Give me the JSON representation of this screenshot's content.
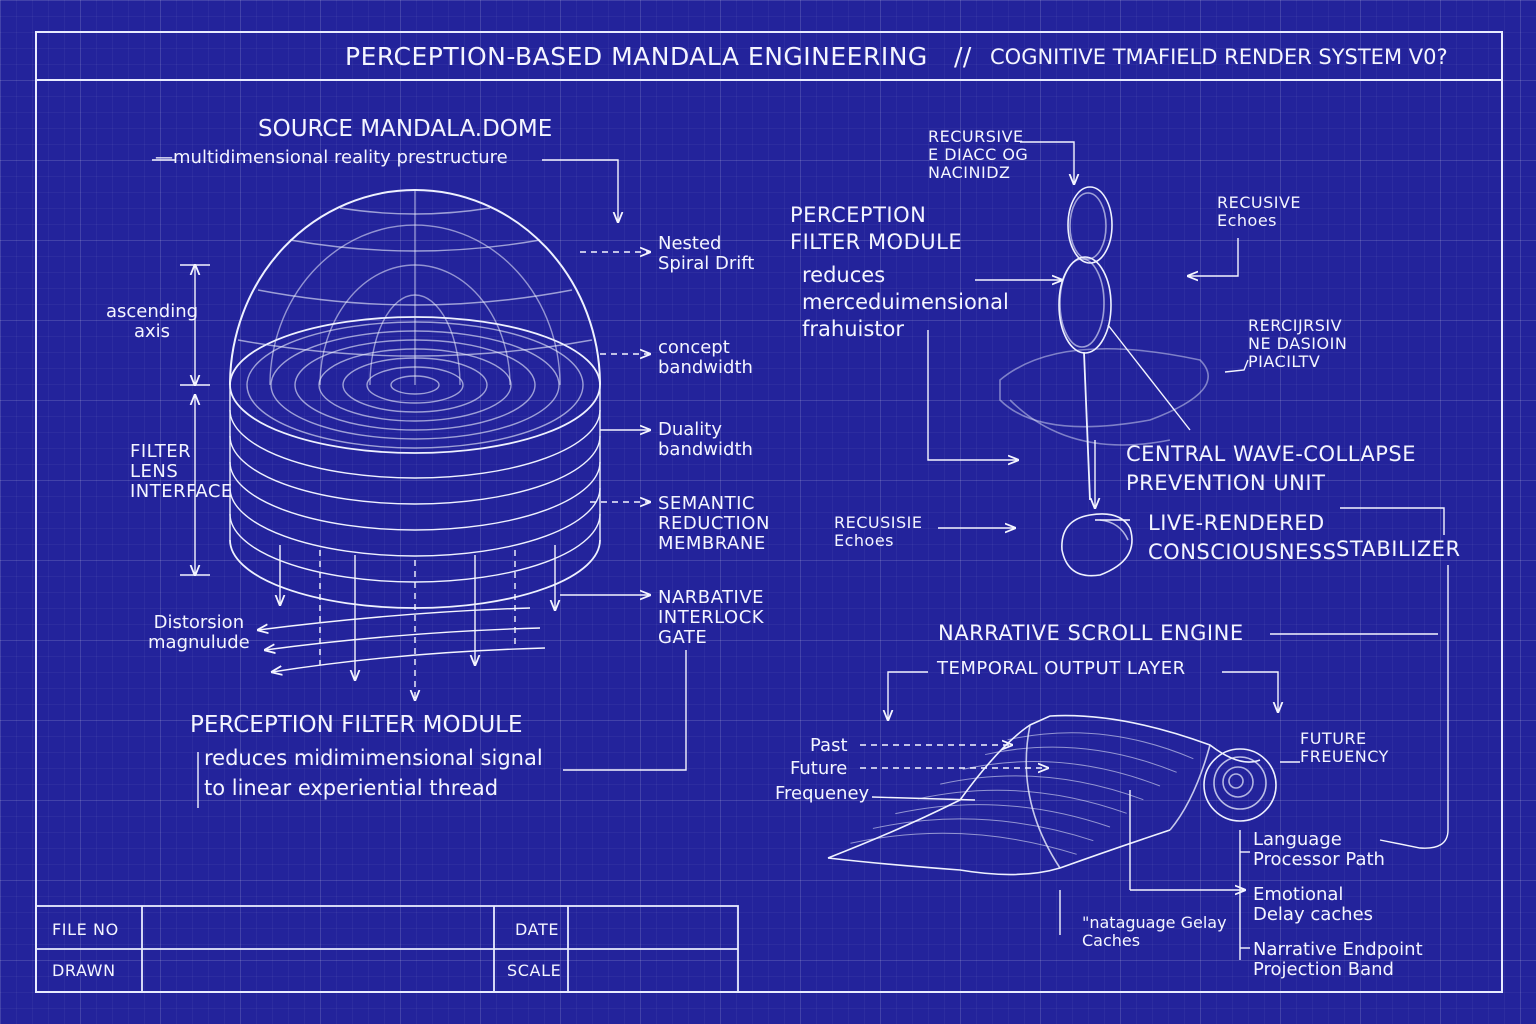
{
  "header": {
    "title": "PERCEPTION-BASED MANDALA ENGINEERING",
    "separator": "//",
    "subtitle": "COGNITIVE TMAFIELD RENDER SYSTEM V0?"
  },
  "dome": {
    "title": "SOURCE MANDALA.DOME",
    "subtitle": "—multidimensional reality prestructure",
    "ascending_axis": "ascending\naxis",
    "filter_lens": "FILTER\nLENS\nINTERFACE",
    "distortion": "Distorsion\nmagnulude",
    "nested": "Nested\nSpiral Drift",
    "concept": "concept\nbandwidth",
    "duality": "Duality\nbandwidth",
    "semantic": "SEMANTIC\nREDUCTION\nMEMBRANE",
    "narrative_gate": "NARBATIVE\nINTERLOCK\nGATE"
  },
  "bottom_module": {
    "title": "PERCEPTION FILTER MODULE",
    "line1": "reduces midimimensional signal",
    "line2": "to linear experiential thread"
  },
  "right_module": {
    "title": "PERCEPTION\nFILTER MODULE",
    "body": "reduces\nmerceduimensional\nfrahuistor",
    "recursive_top": "RECURSIVE\nE DIACC OG\nNACINIDZ",
    "recursive_echoes": "RECUSIVE\nEchoes",
    "recursiv_right": "RERCIJRSIV\nNE DASIOIN\nPIACILTV",
    "central": "CENTRAL WAVE-COLLAPSE\nPREVENTION UNIT",
    "recusisie": "RECUSISIE\nEchoes",
    "live_a": "LIVE-RENDERED\nCONSCIOUSNESS",
    "live_b": "STABILIZER"
  },
  "scroll": {
    "title": "NARRATIVE SCROLL ENGINE",
    "subtitle": "TEMPORAL OUTPUT LAYER",
    "past": "Past",
    "future": "Future",
    "frequency": "Frequeney",
    "future_freq": "FUTURE\nFREUENCY",
    "language": "Language\nProcessor Path",
    "emotional": "Emotional\nDelay caches",
    "narrative_end": "Narrative Endpoint\nProjection Band",
    "lang_delay": "\"nataguage Gelay\nCaches"
  },
  "title_block": {
    "file_no": "FILE NO",
    "date": "DATE",
    "drawn": "DRAWN",
    "scale": "SCALE"
  }
}
